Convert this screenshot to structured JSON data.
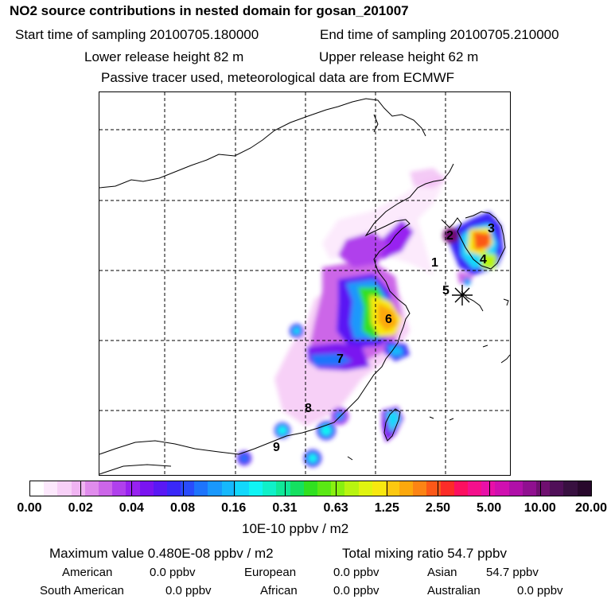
{
  "header": {
    "title": "NO2 source contributions in nested domain for gosan_201007",
    "start_label": "Start time of sampling 20100705.180000",
    "end_label": "End time of sampling 20100705.210000",
    "lower_label": "Lower release height   82 m",
    "upper_label": "Upper release height   62 m",
    "tracer_note": "Passive tracer used, meteorological data are from ECMWF"
  },
  "map": {
    "site_labels": [
      "1",
      "2",
      "3",
      "4",
      "5",
      "6",
      "7",
      "8",
      "9"
    ],
    "marker": "receptor-star"
  },
  "colorbar": {
    "unit": "10E-10 ppbv / m2",
    "ticks": [
      "0.00",
      "0.02",
      "0.04",
      "0.08",
      "0.16",
      "0.31",
      "0.63",
      "1.25",
      "2.50",
      "5.00",
      "10.00",
      "20.00"
    ],
    "colors": [
      "#ffffff",
      "#fce8fc",
      "#f7d0f7",
      "#f0b4f2",
      "#e08cec",
      "#cc66e8",
      "#b040ec",
      "#9822f0",
      "#7a14f0",
      "#5a18f4",
      "#3a28f8",
      "#2a4cfc",
      "#1e74fc",
      "#1a98fc",
      "#16b8fc",
      "#12d8fc",
      "#10f4f4",
      "#10f0c8",
      "#10e898",
      "#14e060",
      "#30e020",
      "#5ae814",
      "#88f010",
      "#b8f410",
      "#e0f410",
      "#f8e810",
      "#fcc810",
      "#fca80c",
      "#fc8414",
      "#fc5818",
      "#fc2c28",
      "#fc1060",
      "#f4108c",
      "#e810a8",
      "#d010b0",
      "#b010a8",
      "#901090",
      "#701070",
      "#501058",
      "#381040",
      "#28082c"
    ]
  },
  "footer": {
    "maximum_value": "Maximum value  0.480E-08 ppbv / m2",
    "total_mixing": "Total mixing ratio      54.7 ppbv",
    "american_label": "American",
    "american_value": "0.0 ppbv",
    "european_label": "European",
    "european_value": "0.0 ppbv",
    "asian_label": "Asian",
    "asian_value": "54.7 ppbv",
    "south_american_label": "South American",
    "south_american_value": "0.0 ppbv",
    "african_label": "African",
    "african_value": "0.0 ppbv",
    "australian_label": "Australian",
    "australian_value": "0.0 ppbv"
  }
}
